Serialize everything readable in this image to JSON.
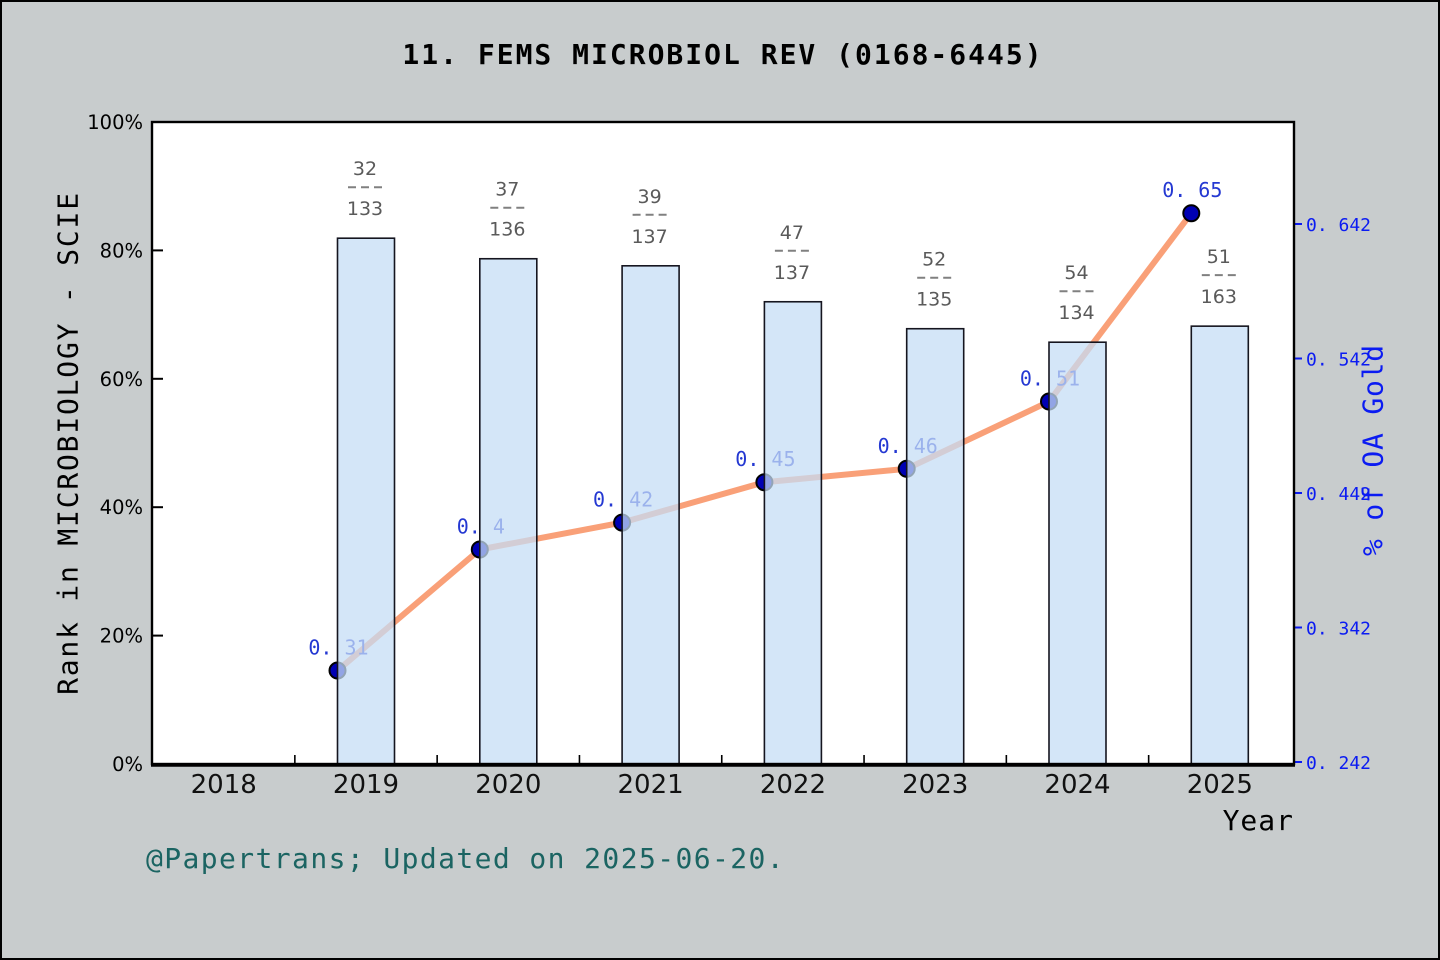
{
  "window": {
    "background_color": "#c8cccd",
    "border_color": "#000000"
  },
  "title": "11. FEMS MICROBIOL REV (0168-6445)",
  "footer": "@Papertrans; Updated on 2025-06-20.",
  "chart_data": {
    "type": "bar+line",
    "title": "11. FEMS MICROBIOL REV (0168-6445)",
    "x_axis": {
      "label": "Year",
      "tick_labels": [
        "2018",
        "2019",
        "2020",
        "2021",
        "2022",
        "2023",
        "2024",
        "2025"
      ],
      "xlim": [
        2017.5,
        2025.55
      ],
      "minor_ticks_at_half_years": true
    },
    "left_axis": {
      "label": "Rank in MICROBIOLOGY - SCIE",
      "tick_labels": [
        "0%",
        "20%",
        "40%",
        "60%",
        "80%",
        "100%"
      ],
      "tick_values": [
        0,
        20,
        40,
        60,
        80,
        100
      ],
      "ylim": [
        0,
        100
      ]
    },
    "right_axis": {
      "label": "% of OA Gold",
      "tick_values": [
        0.242,
        0.342,
        0.442,
        0.542,
        0.642
      ],
      "ylim": [
        0.2405,
        0.7177
      ],
      "color": "#0b1bf2"
    },
    "bars": {
      "name": "Rank in MICROBIOLOGY - SCIE",
      "years": [
        2019,
        2020,
        2021,
        2022,
        2023,
        2024,
        2025
      ],
      "rank": [
        32,
        37,
        39,
        47,
        52,
        54,
        51
      ],
      "total": [
        133,
        136,
        137,
        137,
        135,
        134,
        163
      ],
      "height_pct": [
        81.9,
        78.7,
        77.6,
        72.0,
        67.8,
        65.7,
        68.2
      ],
      "fill": "rgba(197,221,245,0.74)",
      "edge_color": "#15151f",
      "fraction_label_color": "#5a5a5a"
    },
    "line": {
      "name": "% of OA Gold",
      "years": [
        2019,
        2020,
        2021,
        2022,
        2023,
        2024,
        2025
      ],
      "values": [
        0.31,
        0.4,
        0.42,
        0.45,
        0.46,
        0.51,
        0.65
      ],
      "color": "#f9a078",
      "marker_fill": "#0000b4",
      "marker_edge": "#000000",
      "label_color": "#2438d2"
    },
    "legend": "none",
    "grid": false,
    "plot_background": "#ffffff"
  }
}
